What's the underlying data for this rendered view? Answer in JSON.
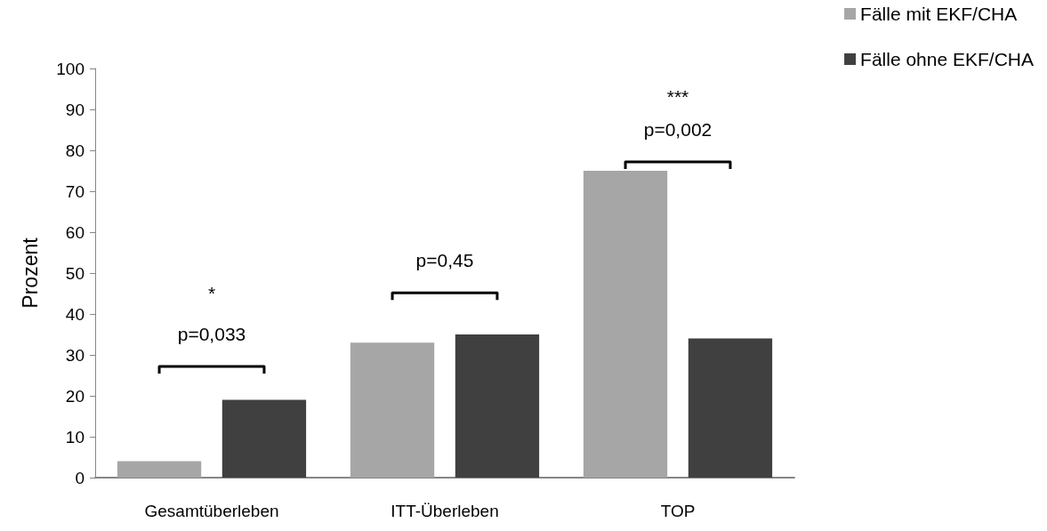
{
  "chart_data": {
    "type": "bar",
    "ylabel": "Prozent",
    "categories": [
      "Gesamtüberleben",
      "ITT-Überleben",
      "TOP"
    ],
    "series": [
      {
        "name": "Fälle mit EKF/CHA",
        "color": "#a6a6a6",
        "values": [
          4,
          33,
          75
        ]
      },
      {
        "name": "Fälle ohne EKF/CHA",
        "color": "#404040",
        "values": [
          19,
          35,
          34
        ]
      }
    ],
    "ylim": [
      0,
      100
    ],
    "yticks": [
      0,
      10,
      20,
      30,
      40,
      50,
      60,
      70,
      80,
      90,
      100
    ],
    "grid": false,
    "legend": "top right",
    "annotations": [
      "*",
      "p=0,033",
      "p=0,45",
      "***",
      "p=0,002"
    ]
  }
}
